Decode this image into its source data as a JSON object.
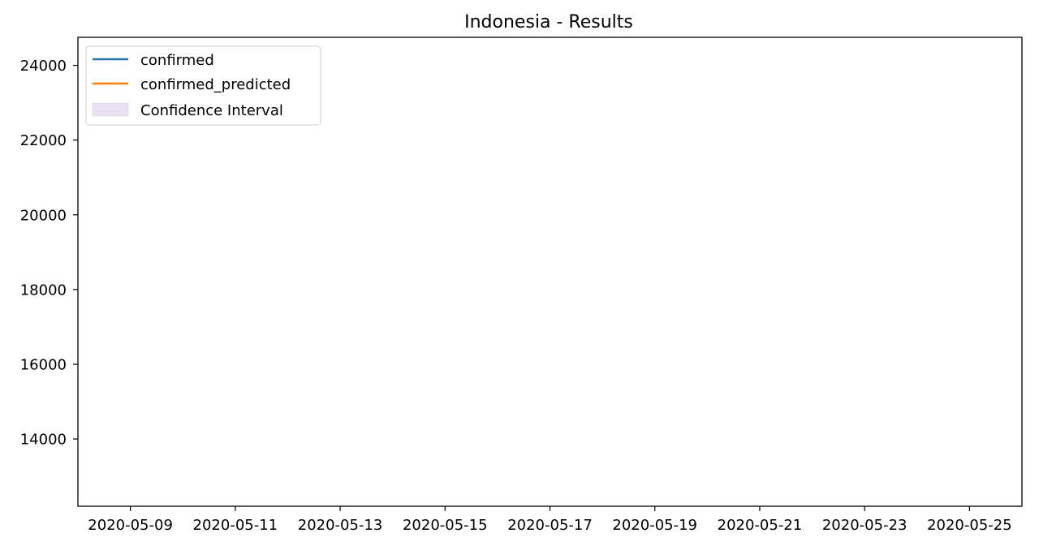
{
  "chart_data": {
    "type": "line",
    "title": "Indonesia - Results",
    "xlabel": "",
    "ylabel": "",
    "x_ticks": [
      "2020-05-09",
      "2020-05-11",
      "2020-05-13",
      "2020-05-15",
      "2020-05-17",
      "2020-05-19",
      "2020-05-21",
      "2020-05-23",
      "2020-05-25"
    ],
    "xlim": [
      "2020-05-08",
      "2020-05-26"
    ],
    "y_ticks": [
      14000,
      16000,
      18000,
      20000,
      22000,
      24000
    ],
    "ylim": [
      12200,
      24750
    ],
    "grid": false,
    "legend_position": "upper-left",
    "series": [
      {
        "name": "confirmed",
        "kind": "line",
        "color": "#1f77b4",
        "x": [],
        "values": []
      },
      {
        "name": "confirmed_predicted",
        "kind": "line",
        "color": "#ff7f0e",
        "x": [],
        "values": []
      },
      {
        "name": "Confidence Interval",
        "kind": "band",
        "color": "#9467bd",
        "x": [],
        "lower": [],
        "upper": []
      }
    ]
  }
}
